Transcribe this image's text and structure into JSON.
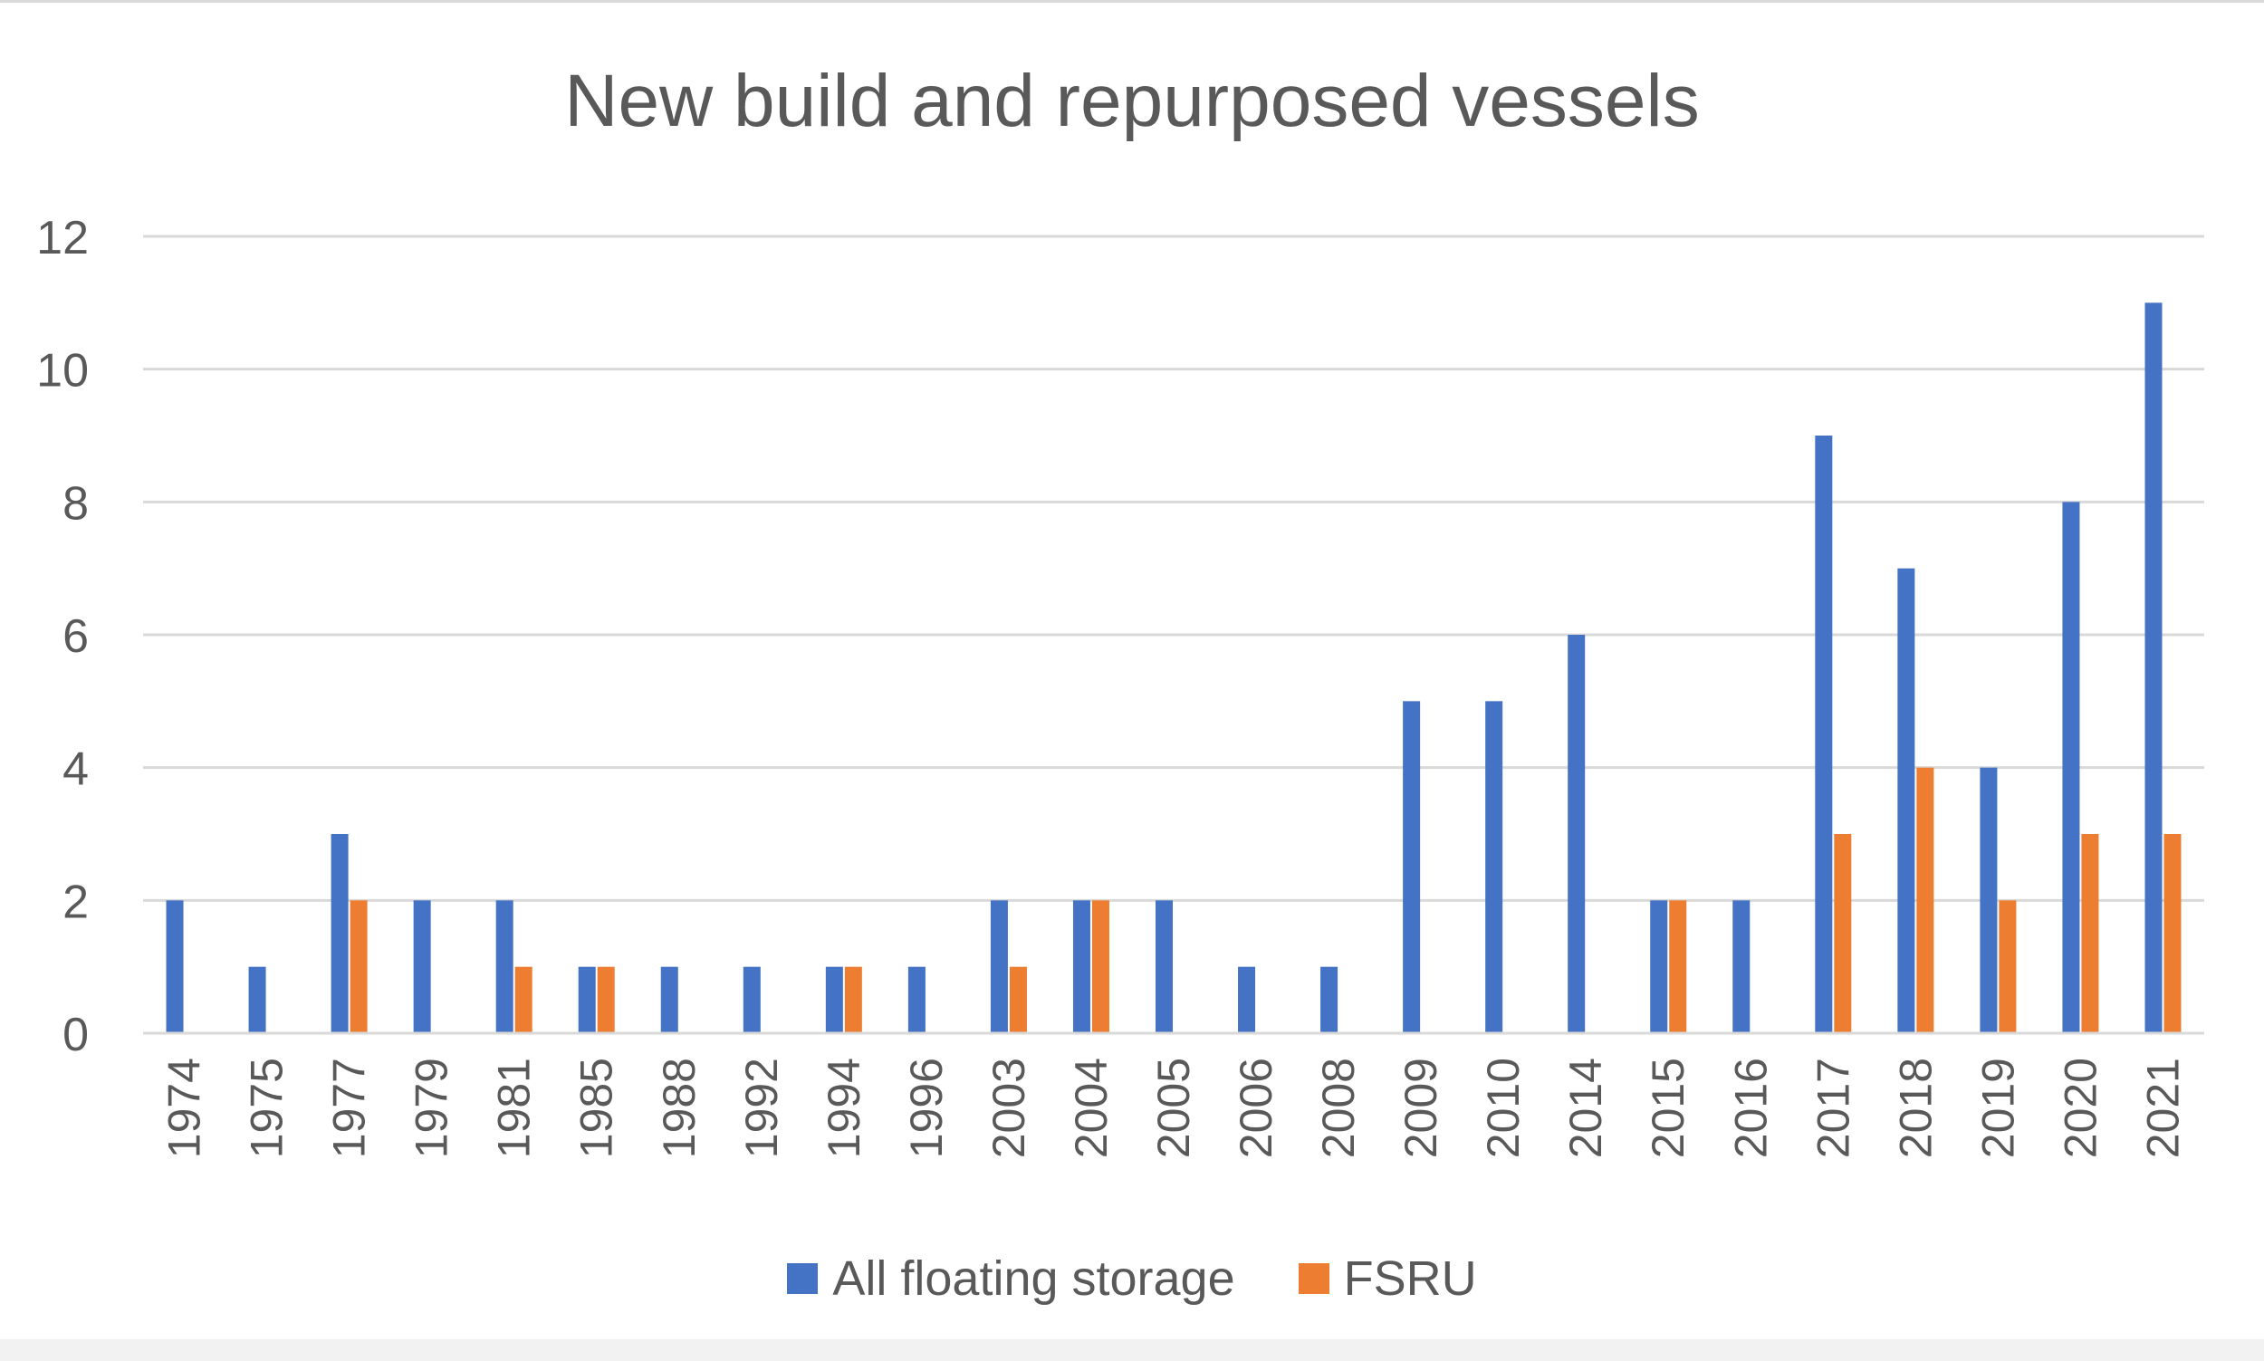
{
  "chart_data": {
    "type": "bar",
    "title": "New build and repurposed vessels",
    "xlabel": "",
    "ylabel": "",
    "ylim": [
      0,
      12
    ],
    "yticks": [
      0,
      2,
      4,
      6,
      8,
      10,
      12
    ],
    "grid": true,
    "legend_position": "bottom",
    "categories": [
      "1974",
      "1975",
      "1977",
      "1979",
      "1981",
      "1985",
      "1988",
      "1992",
      "1994",
      "1996",
      "2003",
      "2004",
      "2005",
      "2006",
      "2008",
      "2009",
      "2010",
      "2014",
      "2015",
      "2016",
      "2017",
      "2018",
      "2019",
      "2020",
      "2021"
    ],
    "series": [
      {
        "name": "All floating storage",
        "color": "#4472c4",
        "values": [
          2,
          1,
          3,
          2,
          2,
          1,
          1,
          1,
          1,
          1,
          2,
          2,
          2,
          1,
          1,
          5,
          5,
          6,
          2,
          2,
          9,
          7,
          4,
          8,
          11
        ]
      },
      {
        "name": "FSRU",
        "color": "#ed7d31",
        "values": [
          0,
          0,
          2,
          0,
          1,
          1,
          0,
          0,
          1,
          0,
          1,
          2,
          0,
          0,
          0,
          0,
          0,
          0,
          2,
          0,
          3,
          4,
          2,
          3,
          3
        ]
      }
    ]
  }
}
